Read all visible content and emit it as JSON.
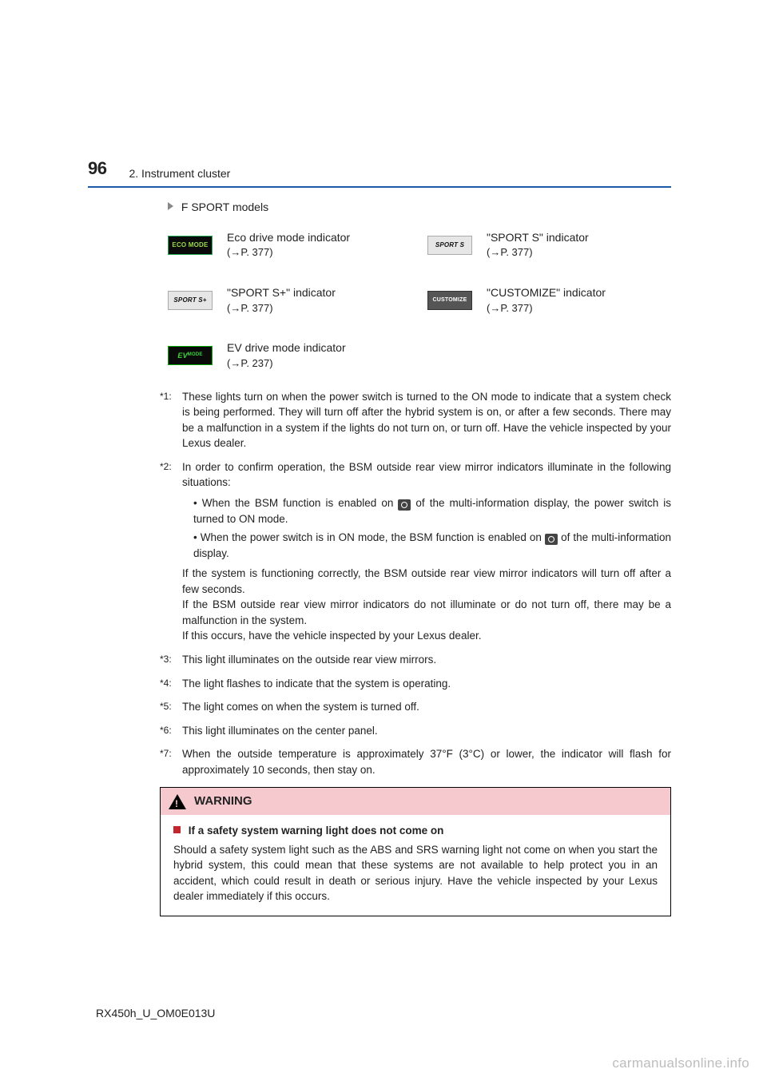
{
  "header": {
    "page_number": "96",
    "section": "2. Instrument cluster"
  },
  "subhead": "F SPORT models",
  "indicators": [
    {
      "badge_class": "badge-eco",
      "badge": "ECO MODE",
      "label": "Eco drive mode indicator",
      "ref": "(→P. 377)"
    },
    {
      "badge_class": "badge-sport",
      "badge": "SPORT S",
      "label": "\"SPORT S\" indicator",
      "ref": "(→P. 377)"
    },
    {
      "badge_class": "badge-sport",
      "badge": "SPORT S+",
      "label": "\"SPORT S+\" indicator",
      "ref": "(→P. 377)"
    },
    {
      "badge_class": "badge-cust",
      "badge": "CUSTOMIZE",
      "label": "\"CUSTOMIZE\" indicator",
      "ref": "(→P. 377)"
    },
    {
      "badge_class": "badge-ev",
      "badge": "EV",
      "label": "EV drive mode indicator",
      "ref": "(→P. 237)"
    }
  ],
  "footnotes": {
    "f1": {
      "m": "*1:",
      "t": "These lights turn on when the power switch is turned to the ON mode to indicate that a system check is being performed. They will turn off after the hybrid system is on, or after a few seconds. There may be a malfunction in a system if the lights do not turn on, or turn off. Have the vehicle inspected by your Lexus dealer."
    },
    "f2": {
      "m": "*2:",
      "lead": "In order to confirm operation, the BSM outside rear view mirror indicators illuminate in the following situations:",
      "b1a": "When the BSM function is enabled on ",
      "b1b": " of the multi-information display, the power switch is turned to ON mode.",
      "b2a": "When the power switch is in ON mode, the BSM function is enabled on ",
      "b2b": " of the multi-information display.",
      "p1": "If the system is functioning correctly, the BSM outside rear view mirror indicators will turn off after a few seconds.",
      "p2": "If the BSM outside rear view mirror indicators do not illuminate or do not turn off, there may be a malfunction in the system.",
      "p3": "If this occurs, have the vehicle inspected by your Lexus dealer."
    },
    "f3": {
      "m": "*3:",
      "t": "This light illuminates on the outside rear view mirrors."
    },
    "f4": {
      "m": "*4:",
      "t": "The light flashes to indicate that the system is operating."
    },
    "f5": {
      "m": "*5:",
      "t": "The light comes on when the system is turned off."
    },
    "f6": {
      "m": "*6:",
      "t": "This light illuminates on the center panel."
    },
    "f7": {
      "m": "*7:",
      "t": "When the outside temperature is approximately 37°F (3°C) or lower, the indicator will flash for approximately 10 seconds, then stay on."
    }
  },
  "warning": {
    "head": "WARNING",
    "title": "If a safety system warning light does not come on",
    "body": "Should a safety system light such as the ABS and SRS warning light not come on when you start the hybrid system, this could mean that these systems are not available to help protect you in an accident, which could result in death or serious injury. Have the vehicle inspected by your Lexus dealer immediately if this occurs."
  },
  "doc_id": "RX450h_U_OM0E013U",
  "watermark": "carmanualsonline.info"
}
